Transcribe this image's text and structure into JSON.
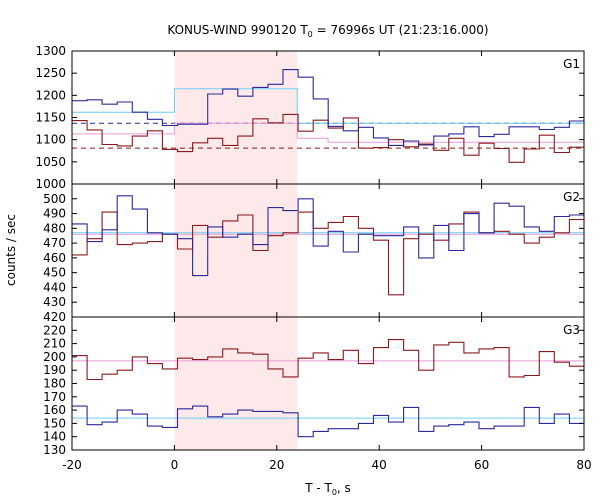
{
  "chart_data": {
    "type": "line",
    "title": "KONUS-WIND 990120 T",
    "title_sub": "0",
    "title_rest": " = 76996s UT (21:23:16.000)",
    "xlabel": "T - T",
    "xlabel_sub": "0",
    "xlabel_rest": ", s",
    "ylabel": "counts / sec",
    "xlim": [
      -20,
      80
    ],
    "xticks": [
      "-20",
      "0",
      "20",
      "40",
      "60",
      "80"
    ],
    "shaded_interval": [
      0,
      24
    ],
    "colors": {
      "blue": "#2a2a9a",
      "red": "#8b1a1a",
      "light_blue": "#6ecff0",
      "pink": "#e89ad8",
      "shade": "#fde8ea",
      "frame": "#000000"
    },
    "panels": [
      {
        "name": "G1",
        "ylim": [
          1000,
          1300
        ],
        "yticks": [
          "1000",
          "1050",
          "1100",
          "1150",
          "1200",
          "1250",
          "1300"
        ],
        "step": 2.944,
        "x_start": -20,
        "blue_values": [
          1188,
          1190,
          1180,
          1185,
          1162,
          1146,
          1132,
          1135,
          1135,
          1203,
          1214,
          1198,
          1218,
          1225,
          1258,
          1241,
          1192,
          1130,
          1120,
          1128,
          1104,
          1087,
          1097,
          1088,
          1108,
          1113,
          1129,
          1107,
          1112,
          1129,
          1129,
          1123,
          1128,
          1142,
          1131,
          1137
        ],
        "red_values": [
          1143,
          1122,
          1089,
          1086,
          1108,
          1120,
          1078,
          1073,
          1093,
          1103,
          1087,
          1108,
          1147,
          1138,
          1157,
          1119,
          1144,
          1126,
          1149,
          1081,
          1082,
          1100,
          1084,
          1090,
          1076,
          1103,
          1065,
          1092,
          1080,
          1049,
          1079,
          1110,
          1071,
          1083,
          1094,
          1125
        ],
        "blue_mean": 1137,
        "red_mean": 1081,
        "light_blue_levels": [
          [
            -20,
            0,
            1162
          ],
          [
            0,
            24,
            1215
          ],
          [
            24,
            80,
            1137
          ]
        ],
        "pink_levels": [
          [
            -20,
            0,
            1113
          ],
          [
            0,
            24,
            1137
          ],
          [
            24,
            30,
            1103
          ],
          [
            30,
            80,
            1094
          ]
        ]
      },
      {
        "name": "G2",
        "ylim": [
          420,
          510
        ],
        "yticks": [
          "420",
          "430",
          "440",
          "450",
          "460",
          "470",
          "480",
          "490",
          "500"
        ],
        "step": 2.944,
        "x_start": -20,
        "blue_values": [
          483,
          471,
          479,
          502,
          493,
          477,
          476,
          473,
          448,
          481,
          474,
          476,
          469,
          494,
          492,
          500,
          468,
          478,
          464,
          476,
          475,
          475,
          481,
          460,
          482,
          465,
          490,
          477,
          497,
          495,
          481,
          478,
          488,
          489,
          478,
          491
        ],
        "red_values": [
          462,
          473,
          491,
          469,
          470,
          471,
          476,
          466,
          482,
          474,
          485,
          489,
          465,
          475,
          477,
          491,
          480,
          484,
          488,
          480,
          472,
          435,
          473,
          476,
          472,
          483,
          491,
          477,
          478,
          476,
          470,
          474,
          477,
          486,
          466,
          488
        ],
        "blue_mean": 477,
        "red_mean": 476
      },
      {
        "name": "G3",
        "ylim": [
          130,
          230
        ],
        "yticks": [
          "130",
          "140",
          "150",
          "160",
          "170",
          "180",
          "190",
          "200",
          "210",
          "220"
        ],
        "step": 2.944,
        "x_start": -20,
        "blue_values": [
          163,
          149,
          151,
          160,
          157,
          148,
          147,
          161,
          163,
          155,
          157,
          160,
          159,
          159,
          158,
          140,
          144,
          146,
          146,
          150,
          156,
          151,
          162,
          144,
          148,
          149,
          151,
          146,
          148,
          148,
          162,
          150,
          157,
          150,
          157,
          146
        ],
        "red_values": [
          201,
          183,
          187,
          190,
          200,
          195,
          191,
          199,
          198,
          200,
          206,
          203,
          202,
          191,
          185,
          199,
          203,
          198,
          205,
          195,
          207,
          213,
          205,
          190,
          209,
          211,
          203,
          206,
          207,
          185,
          186,
          204,
          196,
          193,
          186,
          198
        ],
        "blue_mean": 154,
        "red_mean": 197
      }
    ]
  }
}
